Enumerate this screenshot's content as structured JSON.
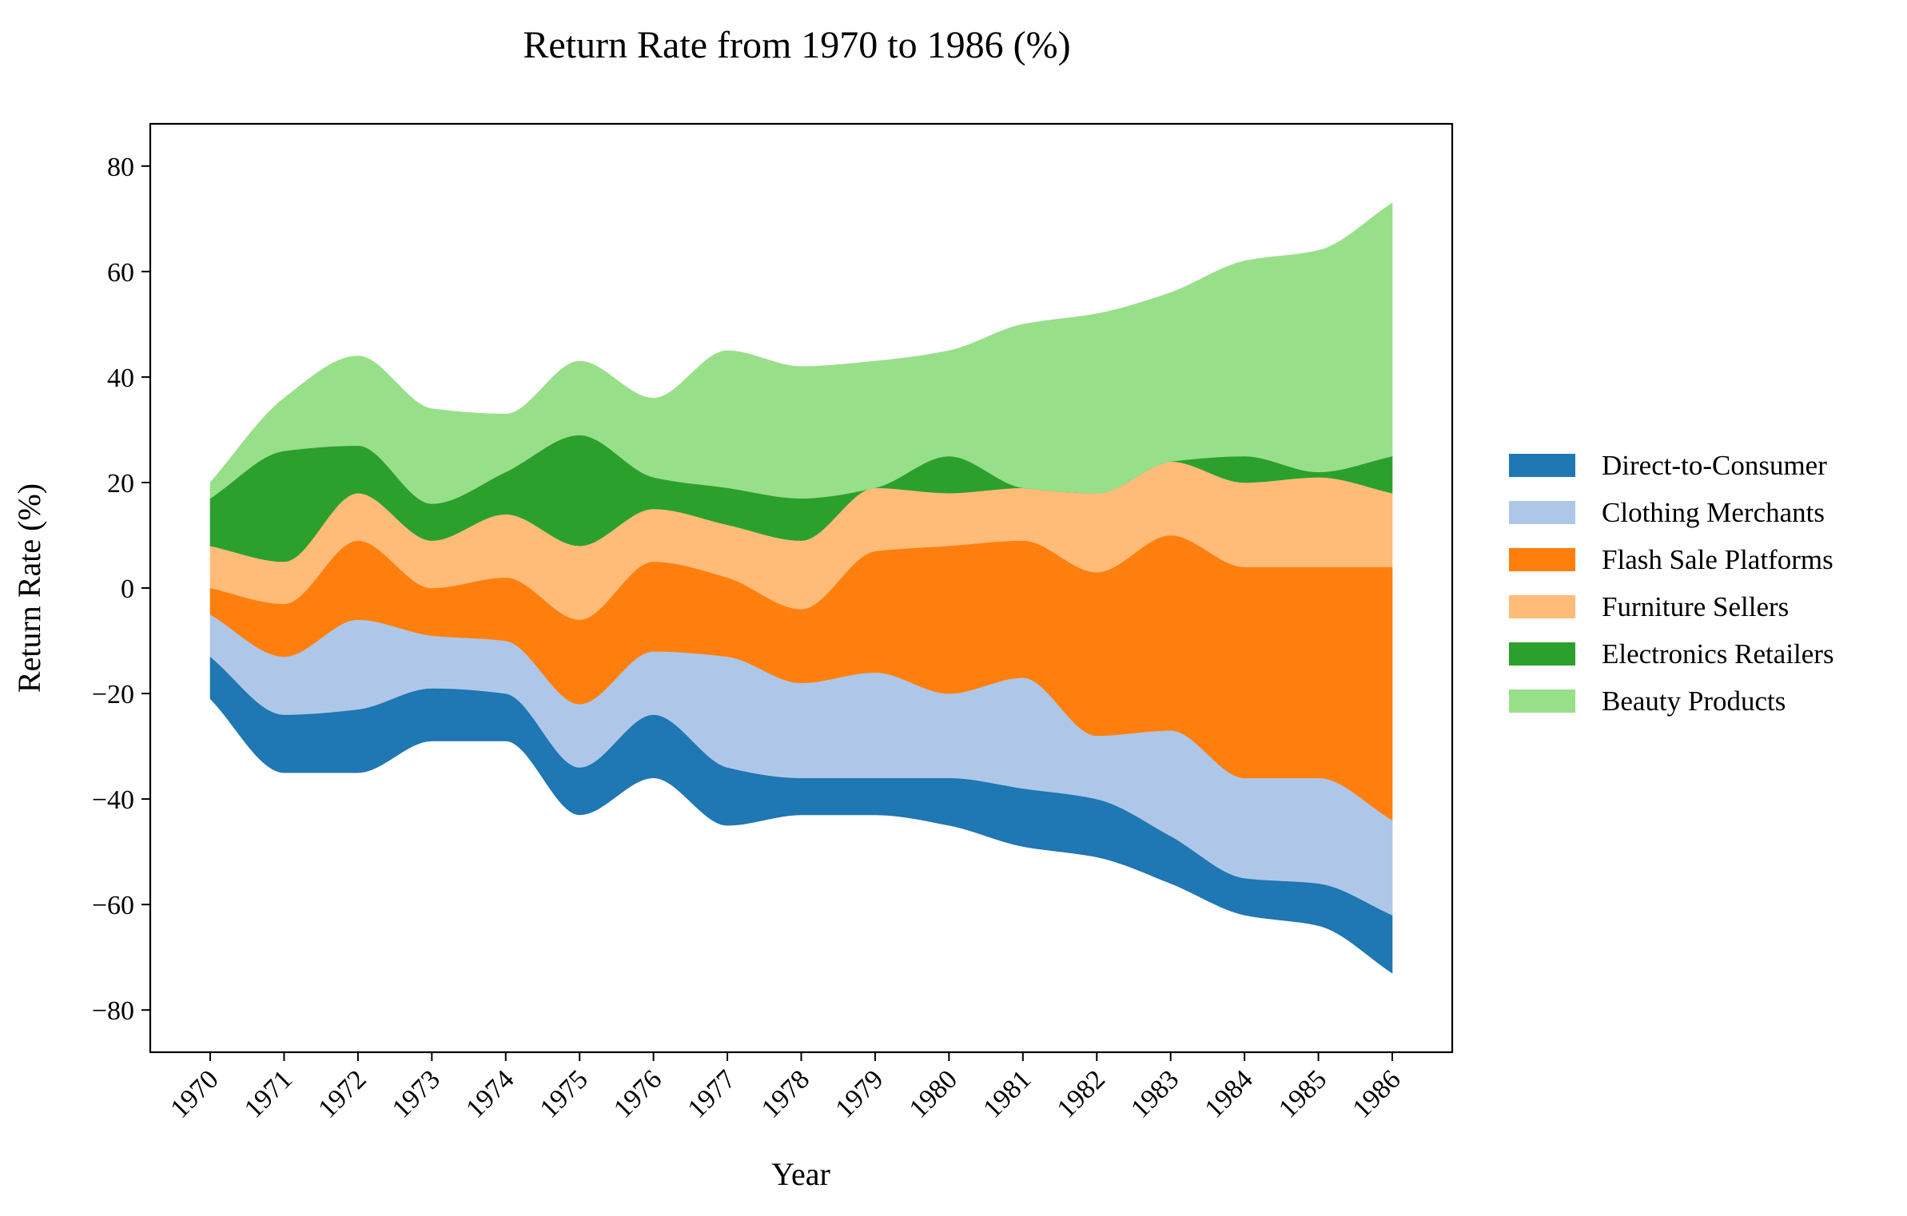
{
  "chart_data": {
    "type": "area",
    "subtype": "streamgraph",
    "title": "Return Rate from 1970 to 1986 (%)",
    "xlabel": "Year",
    "ylabel": "Return Rate (%)",
    "x": [
      "1970",
      "1971",
      "1972",
      "1973",
      "1974",
      "1975",
      "1976",
      "1977",
      "1978",
      "1979",
      "1980",
      "1981",
      "1982",
      "1983",
      "1984",
      "1985",
      "1986"
    ],
    "ylim": [
      -88,
      88
    ],
    "yticks": [
      -80,
      -60,
      -40,
      -20,
      0,
      20,
      40,
      60,
      80
    ],
    "ytick_labels": [
      "−80",
      "−60",
      "−40",
      "−20",
      "0",
      "20",
      "40",
      "60",
      "80"
    ],
    "baseline": [
      -21,
      -35,
      -35,
      -29,
      -29,
      -43,
      -36,
      -45,
      -43,
      -43,
      -45,
      -49,
      -51,
      -56,
      -62,
      -64,
      -73
    ],
    "series": [
      {
        "name": "Direct-to-Consumer",
        "color": "#1f77b4",
        "values": [
          8,
          11,
          12,
          10,
          9,
          9,
          12,
          11,
          7,
          7,
          9,
          11,
          11,
          9,
          7,
          8,
          11
        ]
      },
      {
        "name": "Clothing Merchants",
        "color": "#aec7e8",
        "values": [
          8,
          11,
          17,
          10,
          10,
          12,
          12,
          21,
          18,
          20,
          16,
          21,
          12,
          20,
          19,
          20,
          18
        ]
      },
      {
        "name": "Flash Sale Platforms",
        "color": "#ff7f0e",
        "values": [
          5,
          10,
          15,
          9,
          12,
          16,
          17,
          15,
          14,
          23,
          28,
          26,
          31,
          37,
          40,
          40,
          48
        ]
      },
      {
        "name": "Furniture Sellers",
        "color": "#ffbb78",
        "values": [
          8,
          8,
          9,
          9,
          12,
          14,
          10,
          10,
          13,
          12,
          10,
          10,
          15,
          14,
          16,
          17,
          14
        ]
      },
      {
        "name": "Electronics Retailers",
        "color": "#2ca02c",
        "values": [
          9,
          21,
          9,
          7,
          8,
          21,
          6,
          7,
          8,
          0,
          7,
          0,
          0,
          0,
          5,
          1,
          7
        ]
      },
      {
        "name": "Beauty Products",
        "color": "#98df8a",
        "values": [
          3,
          10,
          17,
          18,
          11,
          14,
          15,
          26,
          25,
          24,
          20,
          31,
          34,
          32,
          37,
          42,
          48
        ]
      }
    ],
    "legend": "right",
    "grid": false
  }
}
